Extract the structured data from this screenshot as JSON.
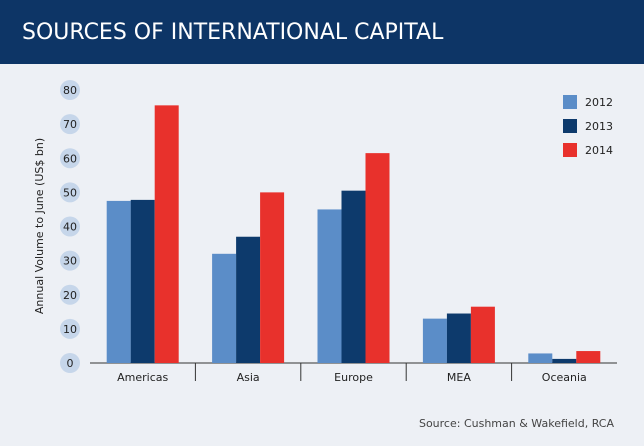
{
  "chart_data": {
    "type": "bar",
    "title": "SOURCES OF INTERNATIONAL CAPITAL",
    "y_label": "Annual Volume to June (US$ bn)",
    "source": "Source: Cushman & Wakefield, RCA",
    "categories": [
      "Americas",
      "Asia",
      "Europe",
      "MEA",
      "Oceania"
    ],
    "series": [
      {
        "name": "2012",
        "color": "#5b8dc8",
        "values": [
          47.5,
          32,
          45,
          13,
          2.8
        ]
      },
      {
        "name": "2013",
        "color": "#0d3a6c",
        "values": [
          47.8,
          37,
          50.5,
          14.5,
          1.2
        ]
      },
      {
        "name": "2014",
        "color": "#e8312c",
        "values": [
          75.5,
          50,
          61.5,
          16.5,
          3.5
        ]
      }
    ],
    "ylim": [
      0,
      80
    ],
    "yticks": [
      0,
      10,
      20,
      30,
      40,
      50,
      60,
      70,
      80
    ],
    "legend": "top-right"
  }
}
